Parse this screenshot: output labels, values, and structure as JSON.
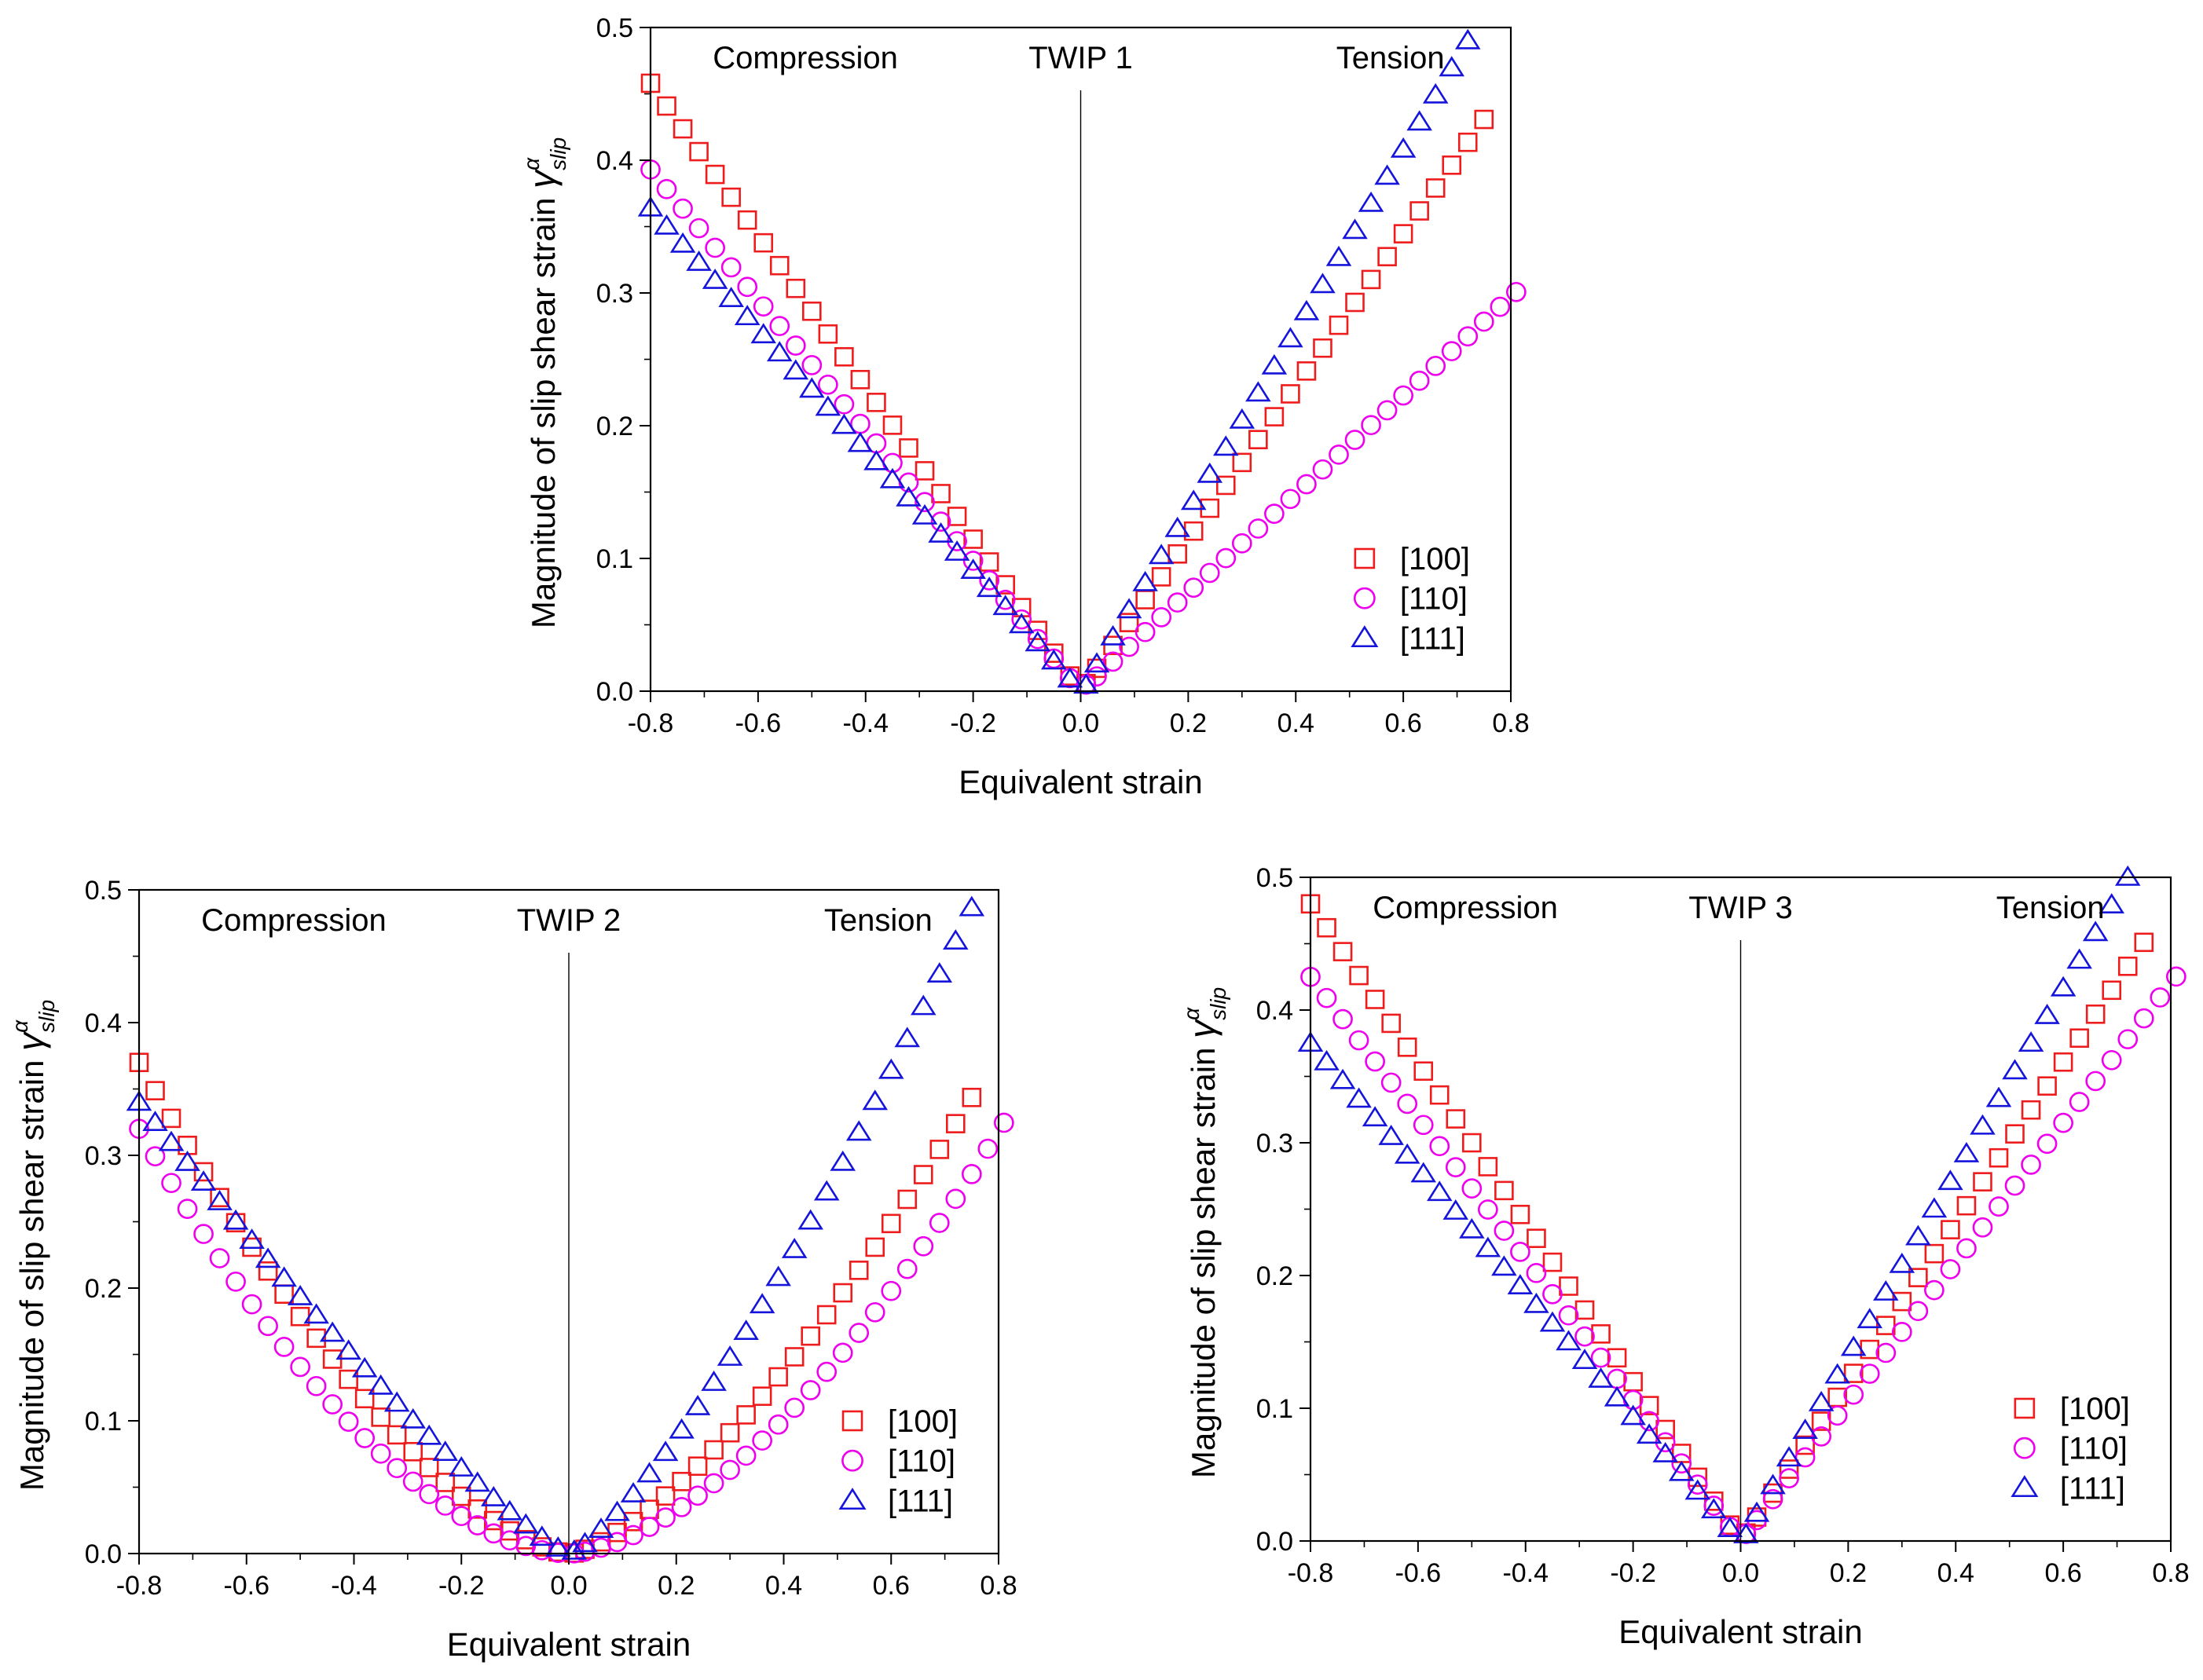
{
  "chart_data": [
    {
      "type": "scatter",
      "title": "TWIP 1",
      "xlabel": "Equivalent strain",
      "ylabel": "Magnitude of slip shear strain",
      "ylabel_symbol": "γ",
      "ylabel_superscript": "α",
      "ylabel_subscript": "slip",
      "xlim": [
        -0.8,
        0.8
      ],
      "ylim": [
        0.0,
        0.5
      ],
      "xticks": [
        -0.8,
        -0.6,
        -0.4,
        -0.2,
        0.0,
        0.2,
        0.4,
        0.6,
        0.8
      ],
      "xtick_labels": [
        "-0.8",
        "-0.6",
        "-0.4",
        "-0.2",
        "0.0",
        "0.2",
        "0.4",
        "0.6",
        "0.8"
      ],
      "yticks": [
        0.0,
        0.1,
        0.2,
        0.3,
        0.4,
        0.5
      ],
      "ytick_labels": [
        "0.0",
        "0.1",
        "0.2",
        "0.3",
        "0.4",
        "0.5"
      ],
      "annotations": [
        "Compression",
        "TWIP 1",
        "Tension"
      ],
      "legend_position": "bottom-right",
      "series": [
        {
          "name": "[100]",
          "marker": "square",
          "color": "#ee1c1c",
          "neg": {
            "xmin": -0.8,
            "ymax": 0.458,
            "power": 1.0
          },
          "pos": {
            "xmax": 0.74,
            "ymax": 0.425,
            "power": 1.0
          }
        },
        {
          "name": "[110]",
          "marker": "circle",
          "color": "#ee00ee",
          "neg": {
            "xmin": -0.8,
            "ymax": 0.393,
            "power": 1.0
          },
          "pos": {
            "xmax": 0.8,
            "ymax": 0.297,
            "power": 1.0
          }
        },
        {
          "name": "[111]",
          "marker": "triangle",
          "color": "#1414dc",
          "neg": {
            "xmin": -0.8,
            "ymax": 0.364,
            "power": 1.0
          },
          "pos": {
            "xmax": 0.72,
            "ymax": 0.49,
            "power": 1.0
          }
        }
      ]
    },
    {
      "type": "scatter",
      "title": "TWIP 2",
      "xlabel": "Equivalent strain",
      "ylabel": "Magnitude of slip shear strain",
      "ylabel_symbol": "γ",
      "ylabel_superscript": "α",
      "ylabel_subscript": "slip",
      "xlim": [
        -0.8,
        0.8
      ],
      "ylim": [
        0.0,
        0.5
      ],
      "xticks": [
        -0.8,
        -0.6,
        -0.4,
        -0.2,
        0.0,
        0.2,
        0.4,
        0.6,
        0.8
      ],
      "xtick_labels": [
        "-0.8",
        "-0.6",
        "-0.4",
        "-0.2",
        "0.0",
        "0.2",
        "0.4",
        "0.6",
        "0.8"
      ],
      "yticks": [
        0.0,
        0.1,
        0.2,
        0.3,
        0.4,
        0.5
      ],
      "ytick_labels": [
        "0.0",
        "0.1",
        "0.2",
        "0.3",
        "0.4",
        "0.5"
      ],
      "annotations": [
        "Compression",
        "TWIP 2",
        "Tension"
      ],
      "legend_position": "bottom-right",
      "series": [
        {
          "name": "[100]",
          "marker": "square",
          "color": "#ee1c1c",
          "neg": {
            "xmin": -0.8,
            "ymax": 0.37,
            "power": 1.55
          },
          "pos": {
            "xmax": 0.74,
            "ymax": 0.337,
            "power": 1.45
          }
        },
        {
          "name": "[110]",
          "marker": "circle",
          "color": "#ee00ee",
          "neg": {
            "xmin": -0.8,
            "ymax": 0.32,
            "power": 1.75
          },
          "pos": {
            "xmax": 0.8,
            "ymax": 0.318,
            "power": 1.65
          }
        },
        {
          "name": "[111]",
          "marker": "triangle",
          "color": "#1414dc",
          "neg": {
            "xmin": -0.8,
            "ymax": 0.34,
            "power": 1.2
          },
          "pos": {
            "xmax": 0.76,
            "ymax": 0.495,
            "power": 1.3
          }
        }
      ]
    },
    {
      "type": "scatter",
      "title": "TWIP 3",
      "xlabel": "Equivalent strain",
      "ylabel": "Magnitude of slip shear strain",
      "ylabel_symbol": "γ",
      "ylabel_superscript": "α",
      "ylabel_subscript": "slip",
      "xlim": [
        -0.8,
        0.8
      ],
      "ylim": [
        0.0,
        0.5
      ],
      "xticks": [
        -0.8,
        -0.6,
        -0.4,
        -0.2,
        0.0,
        0.2,
        0.4,
        0.6,
        0.8
      ],
      "xtick_labels": [
        "-0.8",
        "-0.6",
        "-0.4",
        "-0.2",
        "0.0",
        "0.2",
        "0.4",
        "0.6",
        "0.8"
      ],
      "yticks": [
        0.0,
        0.1,
        0.2,
        0.3,
        0.4,
        0.5
      ],
      "ytick_labels": [
        "0.0",
        "0.1",
        "0.2",
        "0.3",
        "0.4",
        "0.5"
      ],
      "annotations": [
        "Compression",
        "TWIP 3",
        "Tension"
      ],
      "legend_position": "bottom-right",
      "series": [
        {
          "name": "[100]",
          "marker": "square",
          "color": "#ee1c1c",
          "neg": {
            "xmin": -0.8,
            "ymax": 0.48,
            "power": 1.0
          },
          "pos": {
            "xmax": 0.74,
            "ymax": 0.445,
            "power": 1.0
          }
        },
        {
          "name": "[110]",
          "marker": "circle",
          "color": "#ee00ee",
          "neg": {
            "xmin": -0.8,
            "ymax": 0.425,
            "power": 1.0
          },
          "pos": {
            "xmax": 0.8,
            "ymax": 0.42,
            "power": 1.0
          }
        },
        {
          "name": "[111]",
          "marker": "triangle",
          "color": "#1414dc",
          "neg": {
            "xmin": -0.8,
            "ymax": 0.375,
            "power": 1.0
          },
          "pos": {
            "xmax": 0.72,
            "ymax": 0.5,
            "power": 1.0
          }
        }
      ]
    }
  ]
}
